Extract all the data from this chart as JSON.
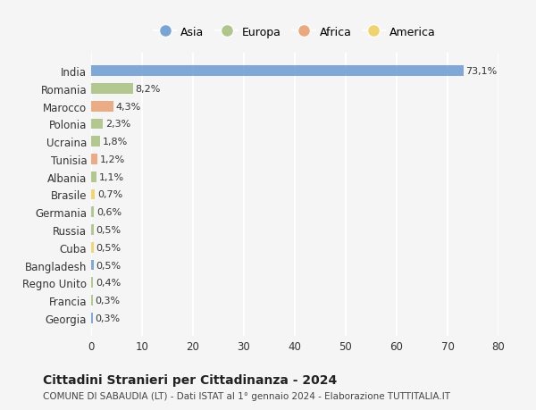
{
  "countries": [
    "India",
    "Romania",
    "Marocco",
    "Polonia",
    "Ucraina",
    "Tunisia",
    "Albania",
    "Brasile",
    "Germania",
    "Russia",
    "Cuba",
    "Bangladesh",
    "Regno Unito",
    "Francia",
    "Georgia"
  ],
  "values": [
    73.1,
    8.2,
    4.3,
    2.3,
    1.8,
    1.2,
    1.1,
    0.7,
    0.6,
    0.5,
    0.5,
    0.5,
    0.4,
    0.3,
    0.3
  ],
  "labels": [
    "73,1%",
    "8,2%",
    "4,3%",
    "2,3%",
    "1,8%",
    "1,2%",
    "1,1%",
    "0,7%",
    "0,6%",
    "0,5%",
    "0,5%",
    "0,5%",
    "0,4%",
    "0,3%",
    "0,3%"
  ],
  "continents": [
    "Asia",
    "Europa",
    "Africa",
    "Europa",
    "Europa",
    "Africa",
    "Europa",
    "America",
    "Europa",
    "Europa",
    "America",
    "Asia",
    "Europa",
    "Europa",
    "Asia"
  ],
  "continent_colors": {
    "Asia": "#6b9bd2",
    "Europa": "#a8c080",
    "Africa": "#e8a070",
    "America": "#f0d060"
  },
  "legend_order": [
    "Asia",
    "Europa",
    "Africa",
    "America"
  ],
  "title": "Cittadini Stranieri per Cittadinanza - 2024",
  "subtitle": "COMUNE DI SABAUDIA (LT) - Dati ISTAT al 1° gennaio 2024 - Elaborazione TUTTITALIA.IT",
  "xlim": [
    0,
    80
  ],
  "xticks": [
    0,
    10,
    20,
    30,
    40,
    50,
    60,
    70,
    80
  ],
  "background_color": "#f5f5f5",
  "grid_color": "#ffffff",
  "bar_height": 0.6
}
